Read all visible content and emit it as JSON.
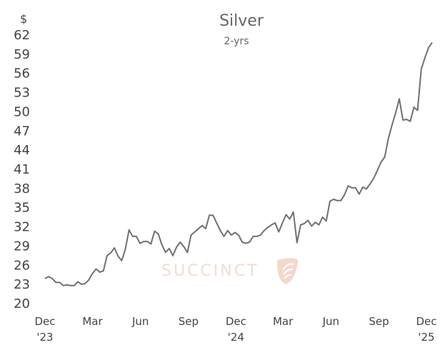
{
  "chart_data": {
    "type": "line",
    "title": "Silver",
    "subtitle": "2-yrs",
    "y_unit": "$",
    "ylim": [
      20,
      62
    ],
    "y_ticks": [
      20,
      23,
      26,
      29,
      32,
      35,
      38,
      41,
      44,
      47,
      50,
      53,
      56,
      59,
      62
    ],
    "x_tick_labels": [
      {
        "label": "Dec",
        "sub": "'23",
        "date": "2023-12-01"
      },
      {
        "label": "Mar",
        "sub": "",
        "date": "2024-03-01"
      },
      {
        "label": "Jun",
        "sub": "",
        "date": "2024-06-01"
      },
      {
        "label": "Sep",
        "sub": "",
        "date": "2024-09-01"
      },
      {
        "label": "Dec",
        "sub": "'24",
        "date": "2024-12-01"
      },
      {
        "label": "Mar",
        "sub": "",
        "date": "2025-03-01"
      },
      {
        "label": "Jun",
        "sub": "",
        "date": "2025-06-01"
      },
      {
        "label": "Sep",
        "sub": "",
        "date": "2025-09-01"
      },
      {
        "label": "Dec",
        "sub": "'25",
        "date": "2025-12-01"
      }
    ],
    "grid": false,
    "legend": "none",
    "line_color": "#707070",
    "watermark": "SUCCINCT",
    "series": [
      {
        "x": [
          "2023-12-01",
          "2023-12-08",
          "2023-12-15",
          "2023-12-22",
          "2023-12-29",
          "2024-01-05",
          "2024-01-12",
          "2024-01-19",
          "2024-01-26",
          "2024-02-02",
          "2024-02-09",
          "2024-02-16",
          "2024-02-23",
          "2024-03-01",
          "2024-03-08",
          "2024-03-15",
          "2024-03-22",
          "2024-03-29",
          "2024-04-05",
          "2024-04-12",
          "2024-04-19",
          "2024-04-26",
          "2024-05-03",
          "2024-05-10",
          "2024-05-17",
          "2024-05-24",
          "2024-05-31",
          "2024-06-07",
          "2024-06-14",
          "2024-06-21",
          "2024-06-28",
          "2024-07-05",
          "2024-07-12",
          "2024-07-19",
          "2024-07-26",
          "2024-08-02",
          "2024-08-09",
          "2024-08-16",
          "2024-08-23",
          "2024-08-30",
          "2024-09-06",
          "2024-09-13",
          "2024-09-20",
          "2024-09-27",
          "2024-10-04",
          "2024-10-11",
          "2024-10-18",
          "2024-10-25",
          "2024-11-01",
          "2024-11-08",
          "2024-11-15",
          "2024-11-22",
          "2024-11-29",
          "2024-12-06",
          "2024-12-13",
          "2024-12-20",
          "2024-12-27",
          "2025-01-03",
          "2025-01-10",
          "2025-01-17",
          "2025-01-24",
          "2025-01-31",
          "2025-02-07",
          "2025-02-14",
          "2025-02-21",
          "2025-02-28",
          "2025-03-07",
          "2025-03-14",
          "2025-03-21",
          "2025-03-28",
          "2025-04-04",
          "2025-04-11",
          "2025-04-18",
          "2025-04-25",
          "2025-05-02",
          "2025-05-09",
          "2025-05-16",
          "2025-05-23",
          "2025-05-30",
          "2025-06-06",
          "2025-06-13",
          "2025-06-20",
          "2025-06-27",
          "2025-07-04",
          "2025-07-11",
          "2025-07-18",
          "2025-07-25",
          "2025-08-01",
          "2025-08-08",
          "2025-08-15",
          "2025-08-22",
          "2025-08-29",
          "2025-09-05",
          "2025-09-12",
          "2025-09-19",
          "2025-09-26",
          "2025-10-03",
          "2025-10-10",
          "2025-10-17",
          "2025-10-24",
          "2025-10-31",
          "2025-11-07",
          "2025-11-14",
          "2025-11-21",
          "2025-11-28",
          "2025-12-05",
          "2025-12-12"
        ],
        "y": [
          23.8,
          24.1,
          23.8,
          23.2,
          23.2,
          22.7,
          22.8,
          22.7,
          22.7,
          23.3,
          22.9,
          23.0,
          23.6,
          24.6,
          25.3,
          24.8,
          25.0,
          27.4,
          27.8,
          28.6,
          27.3,
          26.6,
          28.4,
          31.4,
          30.4,
          30.4,
          29.3,
          29.6,
          29.6,
          29.2,
          31.2,
          30.8,
          29.1,
          27.9,
          28.5,
          27.4,
          28.7,
          29.5,
          28.8,
          27.9,
          30.6,
          31.1,
          31.6,
          32.1,
          31.6,
          33.7,
          33.7,
          32.5,
          31.3,
          30.4,
          31.3,
          30.6,
          31.0,
          30.6,
          29.5,
          29.3,
          29.5,
          30.4,
          30.4,
          30.6,
          31.3,
          31.8,
          32.2,
          32.5,
          31.1,
          32.5,
          33.8,
          33.1,
          34.2,
          29.4,
          32.2,
          32.4,
          32.9,
          32.0,
          32.6,
          32.2,
          33.4,
          32.8,
          35.9,
          36.2,
          36.0,
          36.0,
          36.9,
          38.3,
          38.0,
          38.0,
          37.0,
          38.1,
          37.8,
          38.6,
          39.5,
          40.7,
          42.0,
          42.8,
          45.7,
          47.8,
          49.7,
          51.9,
          48.6,
          48.7,
          48.4,
          50.6,
          50.1,
          56.5,
          58.3,
          59.9,
          60.7
        ]
      }
    ]
  }
}
